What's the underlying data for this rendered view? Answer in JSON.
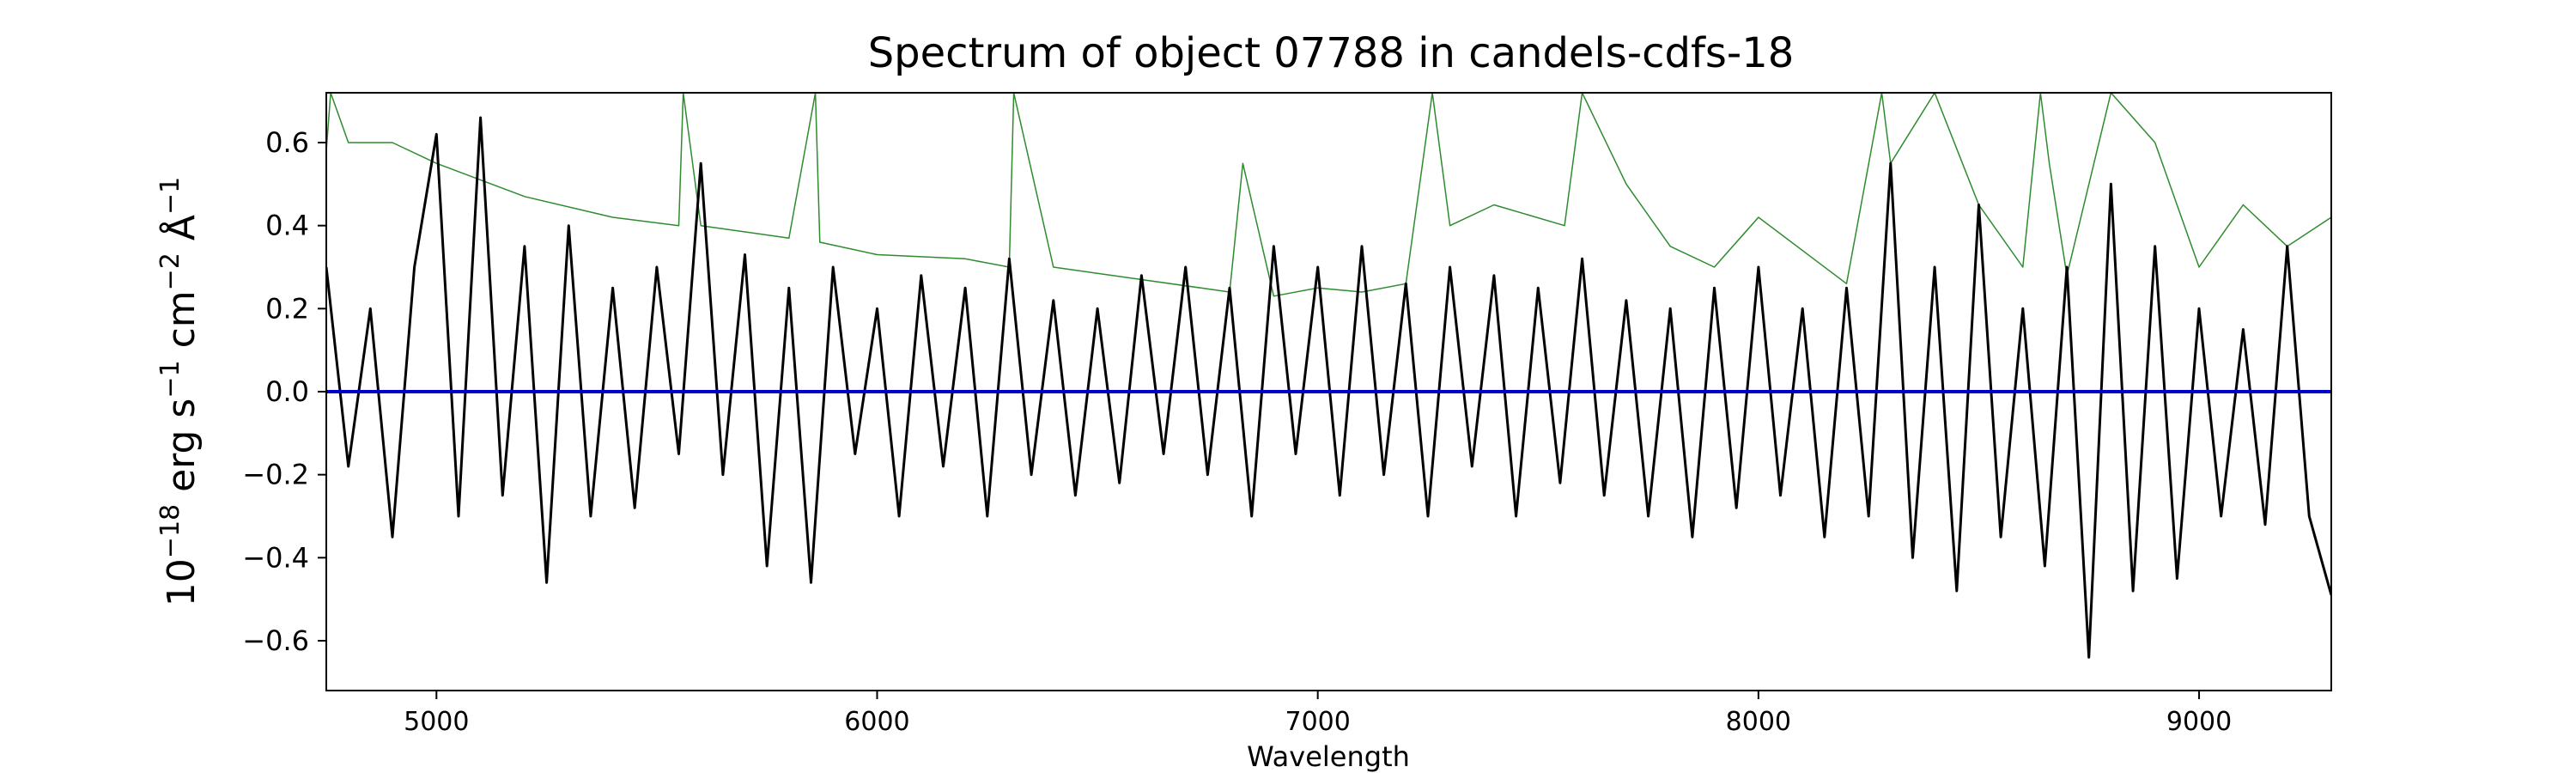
{
  "chart_data": {
    "type": "line",
    "title": "Spectrum of object 07788 in candels-cdfs-18",
    "xlabel": "Wavelength",
    "ylabel": "10^-18 erg s^-1 cm^-2 Å^-1",
    "ylabel_parts": {
      "base": "10",
      "exp1": "−18",
      "erg": " erg s",
      "exp2": "−1",
      "cm": " cm",
      "exp3": "−2",
      "ang": " Å",
      "exp4": "−1"
    },
    "xlim": [
      4750,
      9300
    ],
    "ylim": [
      -0.72,
      0.72
    ],
    "xticks": [
      5000,
      6000,
      7000,
      8000,
      9000
    ],
    "xtick_labels": [
      "5000",
      "6000",
      "7000",
      "8000",
      "9000"
    ],
    "yticks": [
      -0.6,
      -0.4,
      -0.2,
      0.0,
      0.2,
      0.4,
      0.6
    ],
    "ytick_labels": [
      "−0.6",
      "−0.4",
      "−0.2",
      "0.0",
      "0.2",
      "0.4",
      "0.6"
    ],
    "grid": false,
    "legend": false,
    "series": [
      {
        "role": "flux",
        "color": "#000000",
        "x": [
          4750,
          4800,
          4850,
          4900,
          4950,
          5000,
          5050,
          5100,
          5150,
          5200,
          5250,
          5300,
          5350,
          5400,
          5450,
          5500,
          5550,
          5600,
          5650,
          5700,
          5750,
          5800,
          5850,
          5900,
          5950,
          6000,
          6050,
          6100,
          6150,
          6200,
          6250,
          6300,
          6350,
          6400,
          6450,
          6500,
          6550,
          6600,
          6650,
          6700,
          6750,
          6800,
          6850,
          6900,
          6950,
          7000,
          7050,
          7100,
          7150,
          7200,
          7250,
          7300,
          7350,
          7400,
          7450,
          7500,
          7550,
          7600,
          7650,
          7700,
          7750,
          7800,
          7850,
          7900,
          7950,
          8000,
          8050,
          8100,
          8150,
          8200,
          8250,
          8300,
          8350,
          8400,
          8450,
          8500,
          8550,
          8600,
          8650,
          8700,
          8750,
          8800,
          8850,
          8900,
          8950,
          9000,
          9050,
          9100,
          9150,
          9200,
          9250,
          9300
        ],
        "y": [
          0.3,
          -0.18,
          0.2,
          -0.35,
          0.3,
          0.62,
          -0.3,
          0.66,
          -0.25,
          0.35,
          -0.46,
          0.4,
          -0.3,
          0.25,
          -0.28,
          0.3,
          -0.15,
          0.55,
          -0.2,
          0.33,
          -0.42,
          0.25,
          -0.46,
          0.3,
          -0.15,
          0.2,
          -0.3,
          0.28,
          -0.18,
          0.25,
          -0.3,
          0.32,
          -0.2,
          0.22,
          -0.25,
          0.2,
          -0.22,
          0.28,
          -0.15,
          0.3,
          -0.2,
          0.25,
          -0.3,
          0.35,
          -0.15,
          0.3,
          -0.25,
          0.35,
          -0.2,
          0.26,
          -0.3,
          0.3,
          -0.18,
          0.28,
          -0.3,
          0.25,
          -0.22,
          0.32,
          -0.25,
          0.22,
          -0.3,
          0.2,
          -0.35,
          0.25,
          -0.28,
          0.3,
          -0.25,
          0.2,
          -0.35,
          0.25,
          -0.3,
          0.55,
          -0.4,
          0.3,
          -0.48,
          0.45,
          -0.35,
          0.2,
          -0.42,
          0.3,
          -0.64,
          0.5,
          -0.48,
          0.35,
          -0.45,
          0.2,
          -0.3,
          0.15,
          -0.32,
          0.35,
          -0.3,
          -0.49
        ]
      },
      {
        "role": "zero",
        "color": "#0000cc",
        "x": [
          4750,
          9300
        ],
        "y": [
          0.0,
          0.0
        ]
      },
      {
        "role": "noise",
        "color": "#2e8b2e",
        "x": [
          4750,
          4760,
          4800,
          4900,
          5000,
          5200,
          5400,
          5550,
          5560,
          5600,
          5800,
          5860,
          5870,
          6000,
          6200,
          6300,
          6310,
          6400,
          6600,
          6800,
          6830,
          6900,
          7000,
          7100,
          7200,
          7260,
          7300,
          7400,
          7560,
          7600,
          7700,
          7800,
          7900,
          8000,
          8200,
          8280,
          8300,
          8400,
          8500,
          8600,
          8640,
          8660,
          8700,
          8800,
          8900,
          9000,
          9100,
          9200,
          9300
        ],
        "y": [
          0.58,
          0.72,
          0.6,
          0.6,
          0.55,
          0.47,
          0.42,
          0.4,
          0.72,
          0.4,
          0.37,
          0.72,
          0.36,
          0.33,
          0.32,
          0.3,
          0.72,
          0.3,
          0.27,
          0.24,
          0.55,
          0.23,
          0.25,
          0.24,
          0.26,
          0.72,
          0.4,
          0.45,
          0.4,
          0.72,
          0.5,
          0.35,
          0.3,
          0.42,
          0.26,
          0.72,
          0.55,
          0.72,
          0.45,
          0.3,
          0.72,
          0.55,
          0.28,
          0.72,
          0.6,
          0.3,
          0.45,
          0.35,
          0.42
        ]
      }
    ]
  }
}
